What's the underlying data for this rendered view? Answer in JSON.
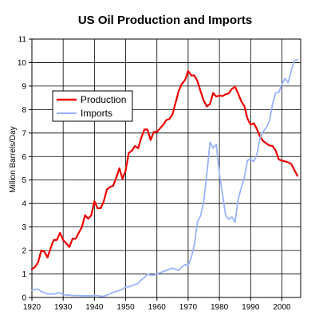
{
  "chart_data": {
    "type": "line",
    "title": "US Oil Production and Imports",
    "xlabel": "",
    "ylabel": "Million Barrels/Day",
    "xlim": [
      1920,
      2006
    ],
    "ylim": [
      0,
      11
    ],
    "x_ticks": [
      1920,
      1930,
      1940,
      1950,
      1960,
      1970,
      1980,
      1990,
      2000
    ],
    "y_ticks": [
      0,
      1,
      2,
      3,
      4,
      5,
      6,
      7,
      8,
      9,
      10,
      11
    ],
    "grid": true,
    "legend_position": "upper-left",
    "series": [
      {
        "name": "Production",
        "color": "#ee0000",
        "x": [
          1920,
          1921,
          1922,
          1923,
          1924,
          1925,
          1926,
          1927,
          1928,
          1929,
          1930,
          1931,
          1932,
          1933,
          1934,
          1935,
          1936,
          1937,
          1938,
          1939,
          1940,
          1941,
          1942,
          1943,
          1944,
          1945,
          1946,
          1947,
          1948,
          1949,
          1950,
          1951,
          1952,
          1953,
          1954,
          1955,
          1956,
          1957,
          1958,
          1959,
          1960,
          1961,
          1962,
          1963,
          1964,
          1965,
          1966,
          1967,
          1968,
          1969,
          1970,
          1971,
          1972,
          1973,
          1974,
          1975,
          1976,
          1977,
          1978,
          1979,
          1980,
          1981,
          1982,
          1983,
          1984,
          1985,
          1986,
          1987,
          1988,
          1989,
          1990,
          1991,
          1992,
          1993,
          1994,
          1995,
          1996,
          1997,
          1998,
          1999,
          2000,
          2001,
          2002,
          2003,
          2004,
          2005
        ],
        "values": [
          1.2,
          1.3,
          1.5,
          2.0,
          1.95,
          1.7,
          2.1,
          2.45,
          2.45,
          2.75,
          2.45,
          2.3,
          2.15,
          2.5,
          2.5,
          2.75,
          3.0,
          3.5,
          3.35,
          3.5,
          4.1,
          3.8,
          3.8,
          4.1,
          4.6,
          4.7,
          4.75,
          5.1,
          5.5,
          5.05,
          5.4,
          6.15,
          6.25,
          6.45,
          6.35,
          6.8,
          7.15,
          7.15,
          6.7,
          7.05,
          7.05,
          7.2,
          7.35,
          7.55,
          7.6,
          7.8,
          8.3,
          8.8,
          9.1,
          9.25,
          9.64,
          9.45,
          9.45,
          9.2,
          8.77,
          8.37,
          8.13,
          8.24,
          8.71,
          8.55,
          8.6,
          8.57,
          8.65,
          8.69,
          8.88,
          8.97,
          8.68,
          8.35,
          8.14,
          7.61,
          7.36,
          7.42,
          7.17,
          6.85,
          6.66,
          6.56,
          6.47,
          6.45,
          6.25,
          5.88,
          5.82,
          5.8,
          5.75,
          5.68,
          5.42,
          5.18
        ]
      },
      {
        "name": "Imports",
        "color": "#99b3ff",
        "x": [
          1920,
          1921,
          1922,
          1923,
          1924,
          1925,
          1926,
          1927,
          1928,
          1929,
          1930,
          1931,
          1932,
          1933,
          1934,
          1935,
          1936,
          1937,
          1938,
          1939,
          1940,
          1941,
          1942,
          1943,
          1944,
          1945,
          1946,
          1947,
          1948,
          1949,
          1950,
          1951,
          1952,
          1953,
          1954,
          1955,
          1956,
          1957,
          1958,
          1959,
          1960,
          1961,
          1962,
          1963,
          1964,
          1965,
          1966,
          1967,
          1968,
          1969,
          1970,
          1971,
          1972,
          1973,
          1974,
          1975,
          1976,
          1977,
          1978,
          1979,
          1980,
          1981,
          1982,
          1983,
          1984,
          1985,
          1986,
          1987,
          1988,
          1989,
          1990,
          1991,
          1992,
          1993,
          1994,
          1995,
          1996,
          1997,
          1998,
          1999,
          2000,
          2001,
          2002,
          2003,
          2004,
          2005
        ],
        "values": [
          0.3,
          0.35,
          0.35,
          0.25,
          0.2,
          0.15,
          0.15,
          0.15,
          0.18,
          0.2,
          0.12,
          0.1,
          0.1,
          0.08,
          0.08,
          0.08,
          0.07,
          0.07,
          0.07,
          0.07,
          0.08,
          0.08,
          0.05,
          0.05,
          0.1,
          0.15,
          0.22,
          0.25,
          0.3,
          0.35,
          0.45,
          0.45,
          0.5,
          0.55,
          0.6,
          0.75,
          0.85,
          1.0,
          0.95,
          0.95,
          1.0,
          1.05,
          1.1,
          1.15,
          1.2,
          1.25,
          1.2,
          1.15,
          1.3,
          1.4,
          1.35,
          1.7,
          2.25,
          3.24,
          3.48,
          4.1,
          5.29,
          6.61,
          6.36,
          6.52,
          5.26,
          4.4,
          3.49,
          3.33,
          3.43,
          3.2,
          4.18,
          4.67,
          5.11,
          5.84,
          5.89,
          5.78,
          6.08,
          6.79,
          7.06,
          7.23,
          7.51,
          8.23,
          8.71,
          8.73,
          9.07,
          9.33,
          9.14,
          9.66,
          10.09,
          10.13
        ]
      }
    ]
  }
}
